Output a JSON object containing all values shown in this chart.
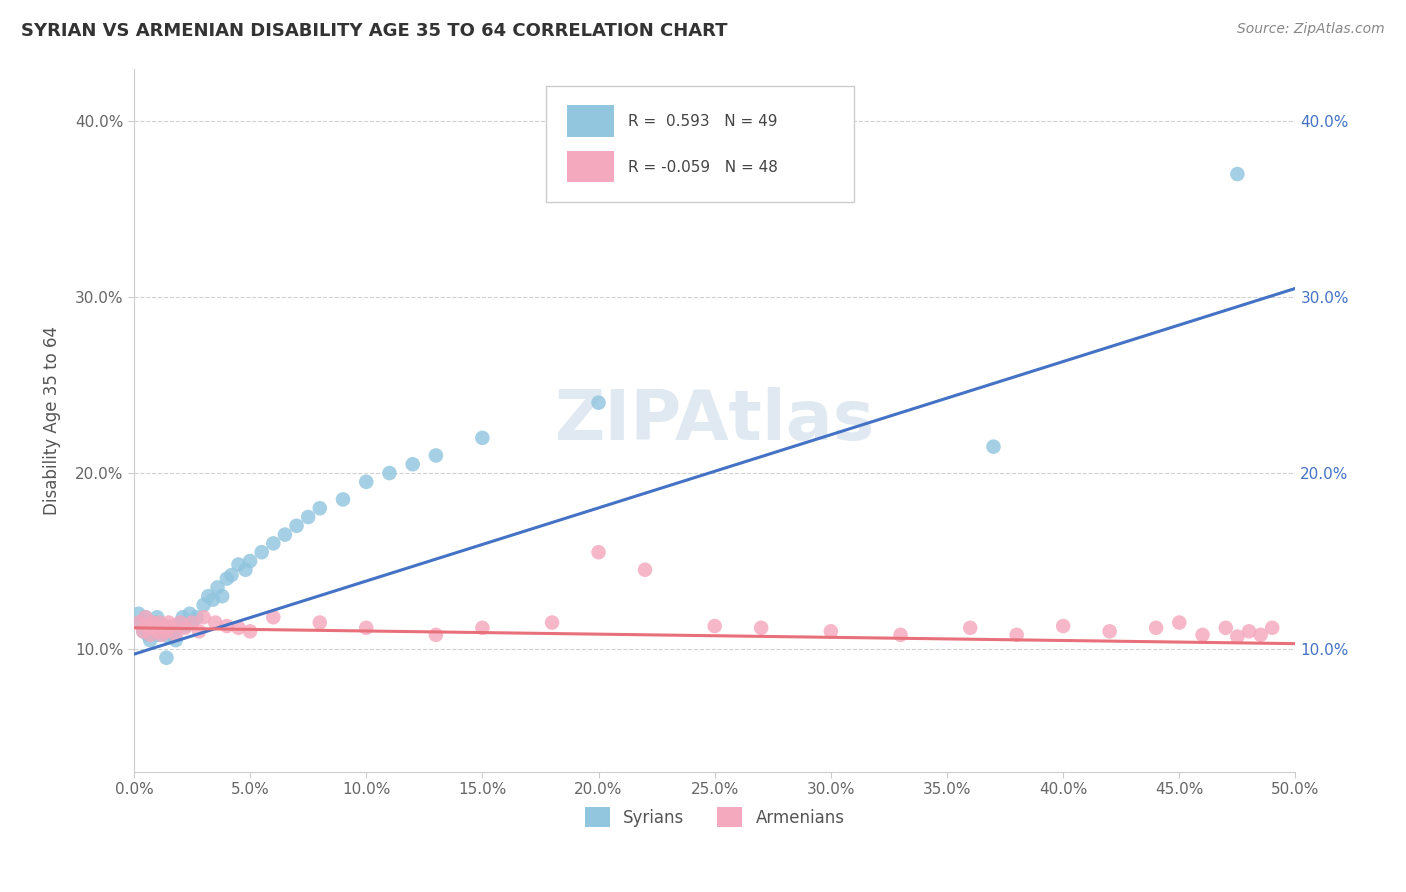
{
  "title": "SYRIAN VS ARMENIAN DISABILITY AGE 35 TO 64 CORRELATION CHART",
  "source": "Source: ZipAtlas.com",
  "ylabel": "Disability Age 35 to 64",
  "watermark": "ZIPAtlas",
  "xlim": [
    0.0,
    0.5
  ],
  "ylim": [
    0.03,
    0.43
  ],
  "xticks": [
    0.0,
    0.05,
    0.1,
    0.15,
    0.2,
    0.25,
    0.3,
    0.35,
    0.4,
    0.45,
    0.5
  ],
  "yticks": [
    0.1,
    0.2,
    0.3,
    0.4
  ],
  "syrian_R": 0.593,
  "syrian_N": 49,
  "armenian_R": -0.059,
  "armenian_N": 48,
  "syrian_color": "#92C5DE",
  "armenian_color": "#F4A9BE",
  "syrian_line_color": "#4472C4",
  "armenian_line_color": "#E8707A",
  "legend_label_syrian": "Syrians",
  "legend_label_armenian": "Armenians",
  "syrian_x": [
    0.002,
    0.003,
    0.004,
    0.005,
    0.006,
    0.007,
    0.008,
    0.009,
    0.01,
    0.011,
    0.012,
    0.013,
    0.014,
    0.015,
    0.016,
    0.017,
    0.018,
    0.019,
    0.02,
    0.021,
    0.022,
    0.024,
    0.025,
    0.027,
    0.03,
    0.032,
    0.034,
    0.036,
    0.038,
    0.04,
    0.042,
    0.045,
    0.048,
    0.05,
    0.055,
    0.06,
    0.065,
    0.07,
    0.075,
    0.08,
    0.09,
    0.1,
    0.11,
    0.12,
    0.13,
    0.15,
    0.2,
    0.37,
    0.475
  ],
  "syrian_y": [
    0.12,
    0.115,
    0.11,
    0.118,
    0.108,
    0.105,
    0.112,
    0.115,
    0.118,
    0.108,
    0.11,
    0.113,
    0.095,
    0.107,
    0.11,
    0.108,
    0.105,
    0.112,
    0.115,
    0.118,
    0.113,
    0.12,
    0.115,
    0.118,
    0.125,
    0.13,
    0.128,
    0.135,
    0.13,
    0.14,
    0.142,
    0.148,
    0.145,
    0.15,
    0.155,
    0.16,
    0.165,
    0.17,
    0.175,
    0.18,
    0.185,
    0.195,
    0.2,
    0.205,
    0.21,
    0.22,
    0.24,
    0.215,
    0.37
  ],
  "armenian_x": [
    0.002,
    0.004,
    0.005,
    0.006,
    0.007,
    0.008,
    0.009,
    0.01,
    0.011,
    0.012,
    0.013,
    0.014,
    0.015,
    0.016,
    0.018,
    0.02,
    0.022,
    0.025,
    0.028,
    0.03,
    0.035,
    0.04,
    0.045,
    0.05,
    0.06,
    0.08,
    0.1,
    0.13,
    0.15,
    0.18,
    0.2,
    0.22,
    0.25,
    0.27,
    0.3,
    0.33,
    0.36,
    0.38,
    0.4,
    0.42,
    0.44,
    0.45,
    0.46,
    0.47,
    0.475,
    0.48,
    0.485,
    0.49
  ],
  "armenian_y": [
    0.115,
    0.11,
    0.118,
    0.113,
    0.108,
    0.115,
    0.112,
    0.11,
    0.115,
    0.108,
    0.112,
    0.11,
    0.115,
    0.113,
    0.108,
    0.115,
    0.112,
    0.115,
    0.11,
    0.118,
    0.115,
    0.113,
    0.112,
    0.11,
    0.118,
    0.115,
    0.112,
    0.108,
    0.112,
    0.115,
    0.155,
    0.145,
    0.113,
    0.112,
    0.11,
    0.108,
    0.112,
    0.108,
    0.113,
    0.11,
    0.112,
    0.115,
    0.108,
    0.112,
    0.107,
    0.11,
    0.108,
    0.112
  ],
  "syrian_line_start_y": 0.097,
  "syrian_line_end_y": 0.305,
  "armenian_line_start_y": 0.112,
  "armenian_line_end_y": 0.103
}
